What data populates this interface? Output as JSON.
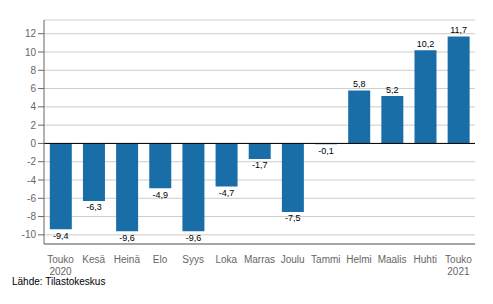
{
  "chart_data": {
    "type": "bar",
    "categories": [
      "Touko\n2020",
      "Kesä",
      "Heinä",
      "Elo",
      "Syys",
      "Loka",
      "Marras",
      "Joulu",
      "Tammi",
      "Helmi",
      "Maalis",
      "Huhti",
      "Touko\n2021"
    ],
    "values": [
      -9.4,
      -6.3,
      -9.6,
      -4.9,
      -9.6,
      -4.7,
      -1.7,
      -7.5,
      -0.1,
      5.8,
      5.2,
      10.2,
      11.7
    ],
    "value_labels": [
      "-9,4",
      "-6,3",
      "-9,6",
      "-4,9",
      "-9,6",
      "-4,7",
      "-1,7",
      "-7,5",
      "-0,1",
      "5,8",
      "5,2",
      "10,2",
      "11,7"
    ],
    "data_labels": true,
    "color": "#1a6ea8",
    "ylim": [
      -11,
      13.5
    ],
    "yticks": [
      -10,
      -8,
      -6,
      -4,
      -2,
      0,
      2,
      4,
      6,
      8,
      10,
      12
    ],
    "grid": true,
    "annotations": [
      "Lähde: Tilastokeskus"
    ]
  }
}
